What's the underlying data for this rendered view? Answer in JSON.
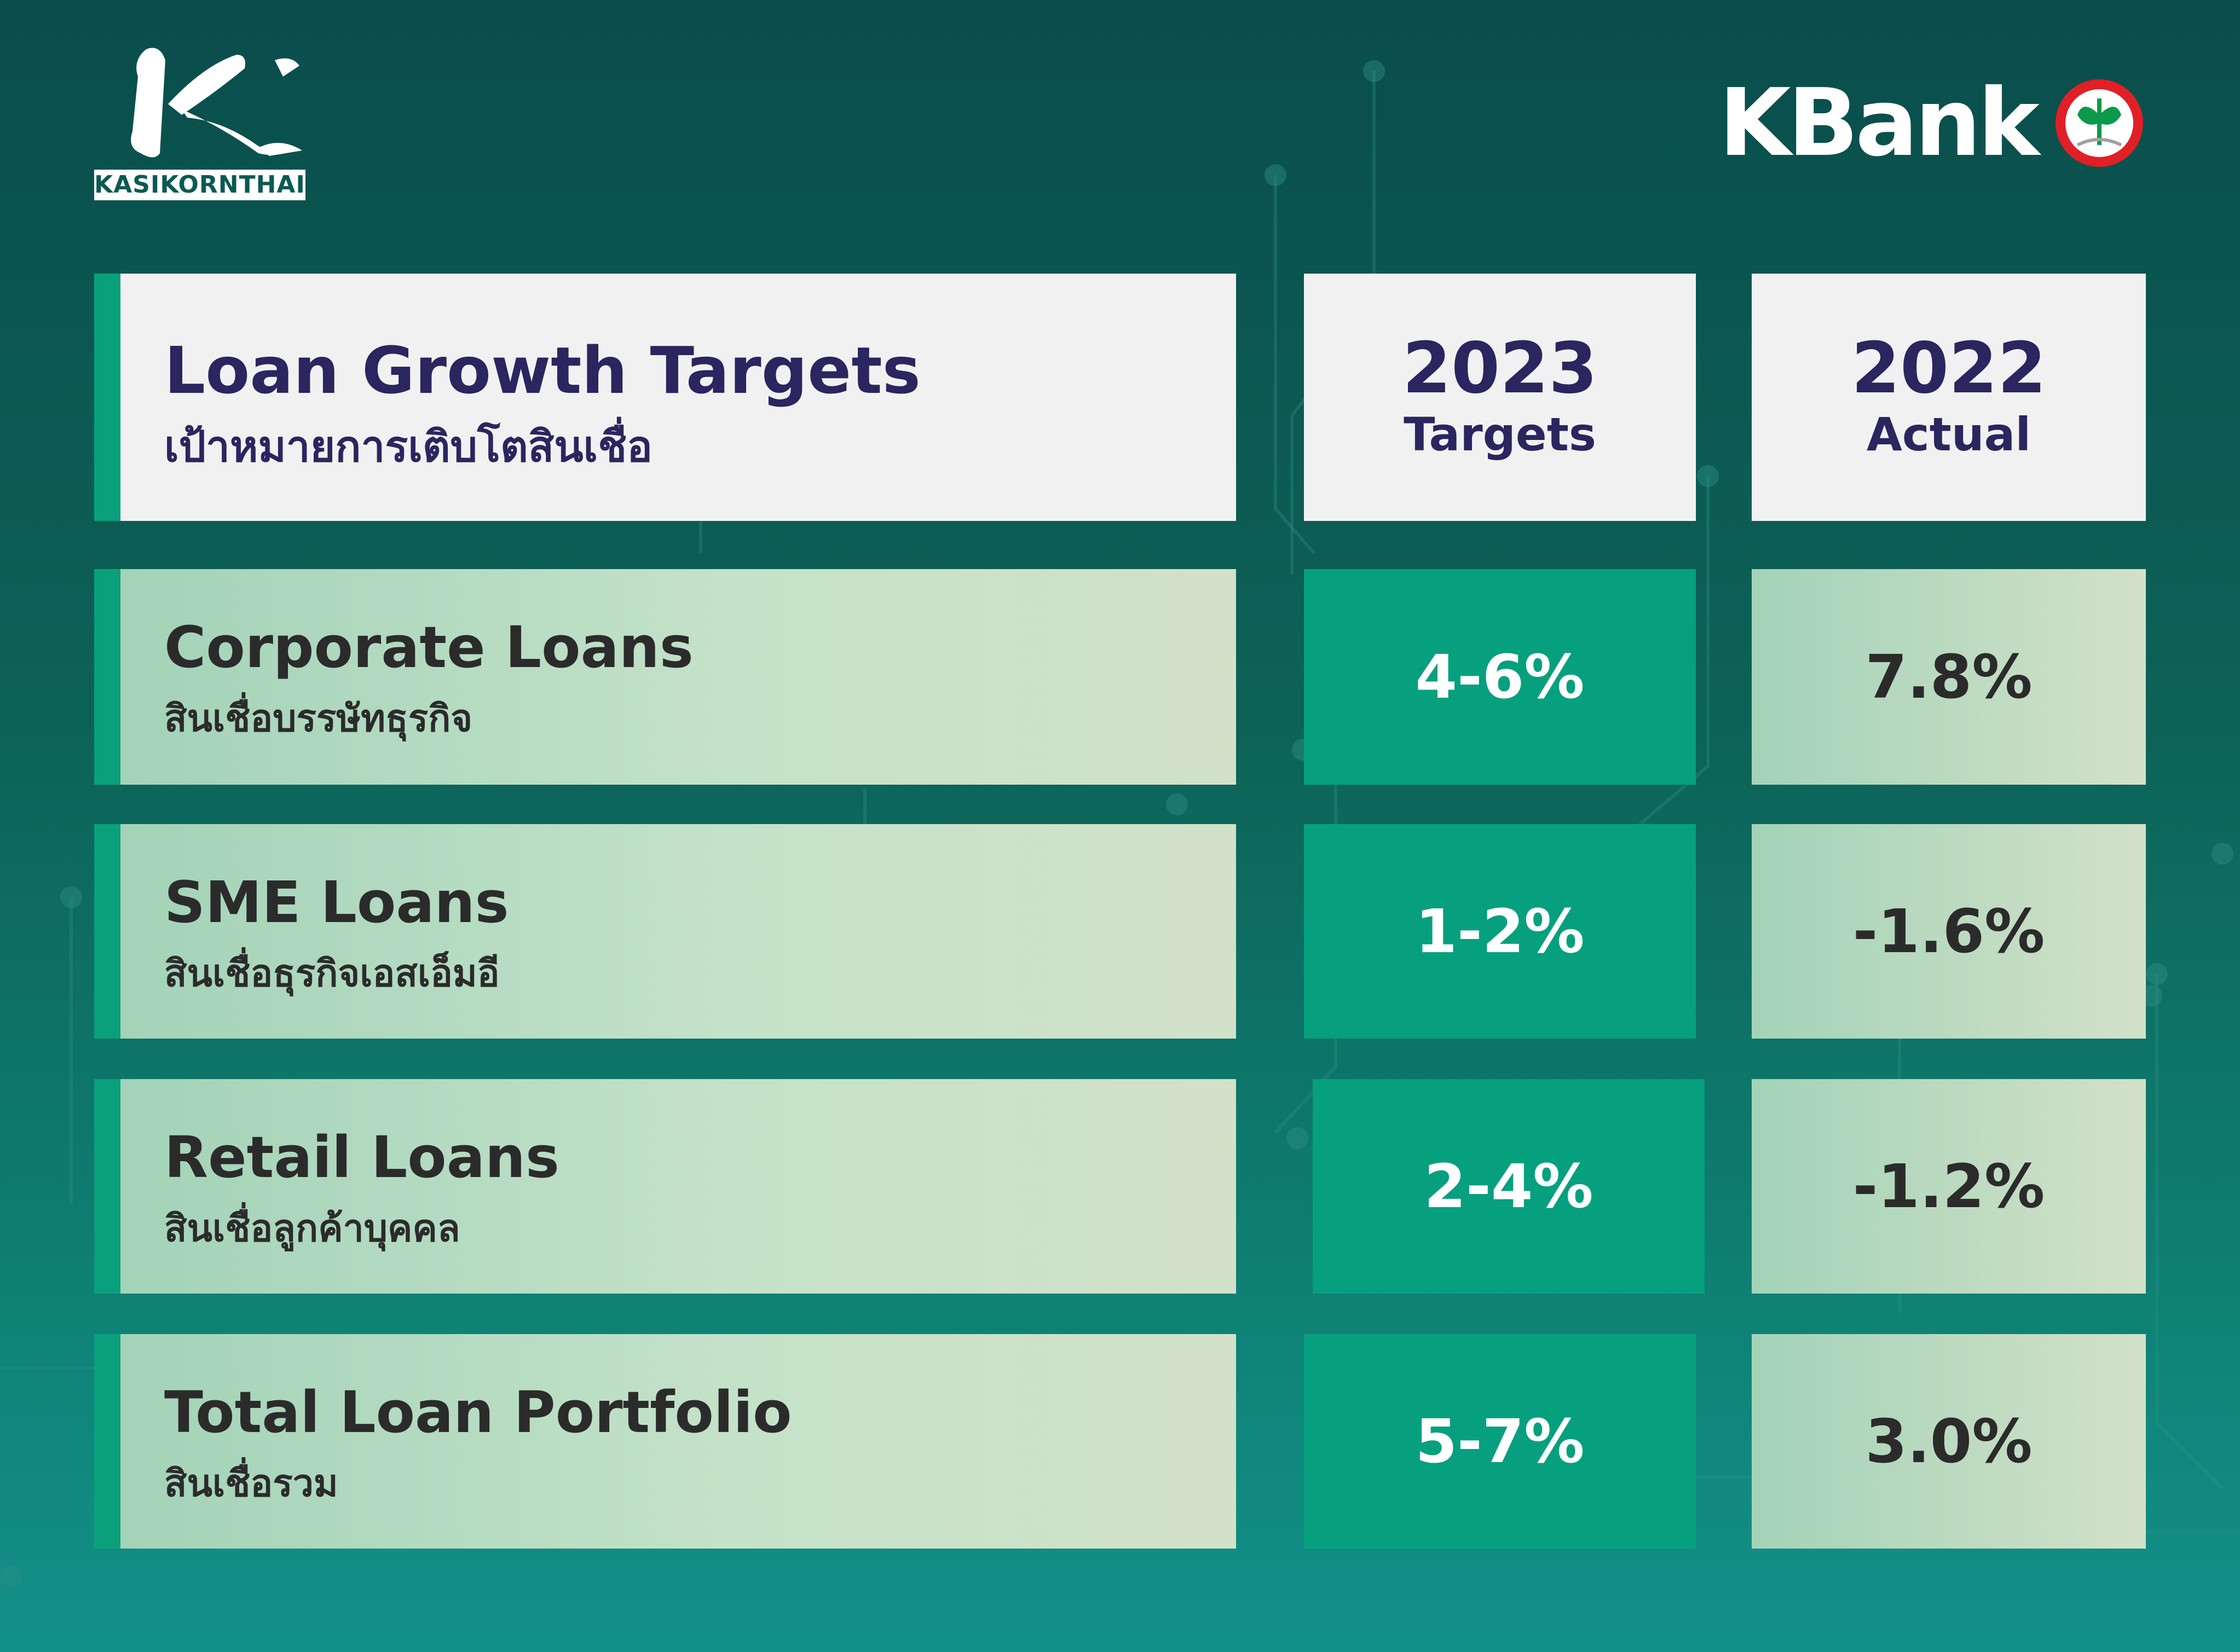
{
  "brand": {
    "left_logo_name": "KASIKORNTHAI",
    "right_logo_text": "KBank",
    "seal_icon": "kbank-seal-icon"
  },
  "colors": {
    "background_top": "#0a4d4c",
    "background_bottom": "#12918a",
    "accent_green": "#06a07e",
    "title_navy": "#2b2560",
    "text_dark": "#2b2b2b",
    "seal_red": "#e01f26"
  },
  "header": {
    "title_en": "Loan Growth Targets",
    "title_th": "เป้าหมายการเติบโตสินเชื่อ",
    "col_targets_year": "2023",
    "col_targets_label": "Targets",
    "col_actual_year": "2022",
    "col_actual_label": "Actual"
  },
  "rows": [
    {
      "name_en": "Corporate Loans",
      "name_th": "สินเชื่อบรรษัทธุรกิจ",
      "target": "4-6%",
      "actual": "7.8%"
    },
    {
      "name_en": "SME Loans",
      "name_th": "สินเชื่อธุรกิจเอสเอ็มอี",
      "target": "1-2%",
      "actual": "-1.6%"
    },
    {
      "name_en": "Retail Loans",
      "name_th": "สินเชื่อลูกค้าบุคคล",
      "target": "2-4%",
      "actual": "-1.2%"
    },
    {
      "name_en": "Total Loan Portfolio",
      "name_th": "สินเชื่อรวม",
      "target": "5-7%",
      "actual": "3.0%"
    }
  ]
}
